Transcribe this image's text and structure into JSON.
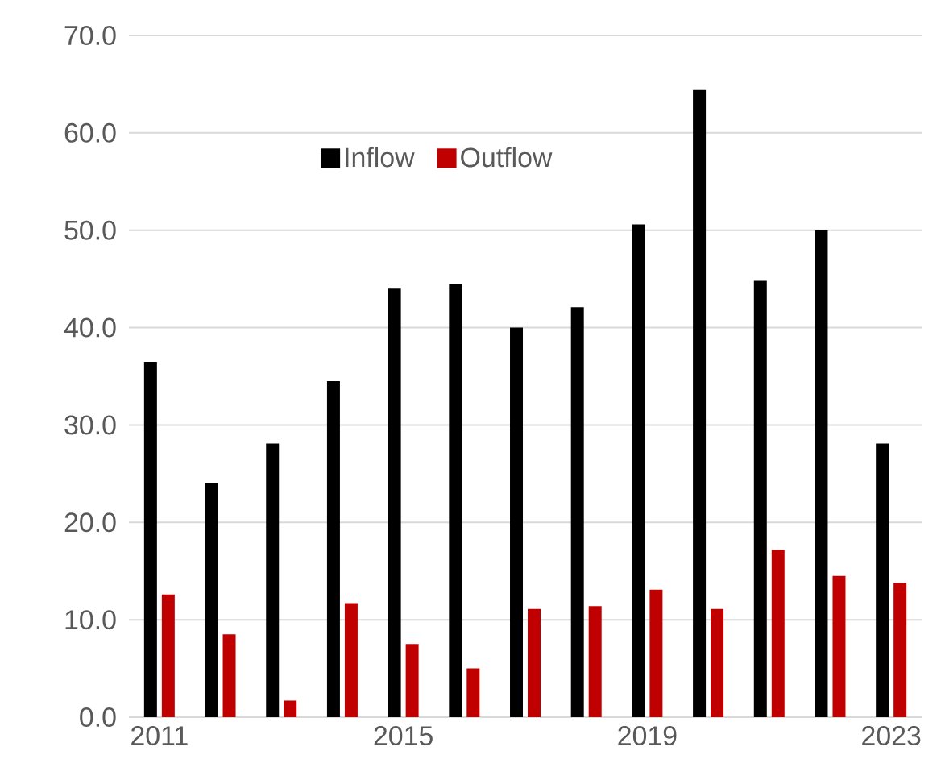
{
  "chart_data": {
    "type": "bar",
    "categories": [
      "2011",
      null,
      null,
      null,
      "2015",
      null,
      null,
      null,
      "2019",
      null,
      null,
      null,
      "2023"
    ],
    "series": [
      {
        "name": "Inflow",
        "color": "#000000",
        "values": [
          36.5,
          24.0,
          28.1,
          34.5,
          44.0,
          44.5,
          40.0,
          42.1,
          50.6,
          64.4,
          44.8,
          50.0,
          28.1
        ]
      },
      {
        "name": "Outflow",
        "color": "#c00000",
        "values": [
          12.6,
          8.5,
          1.7,
          11.7,
          7.5,
          5.0,
          11.1,
          11.4,
          13.1,
          11.1,
          17.2,
          14.5,
          13.8
        ]
      }
    ],
    "ylim": [
      0,
      70
    ],
    "yticks": [
      {
        "value": 0,
        "label": "0.0"
      },
      {
        "value": 10,
        "label": "10.0"
      },
      {
        "value": 20,
        "label": "20.0"
      },
      {
        "value": 30,
        "label": "30.0"
      },
      {
        "value": 40,
        "label": "40.0"
      },
      {
        "value": 50,
        "label": "50.0"
      },
      {
        "value": 60,
        "label": "60.0"
      },
      {
        "value": 70,
        "label": "70.0"
      }
    ],
    "grid": "y",
    "legend": "top"
  }
}
